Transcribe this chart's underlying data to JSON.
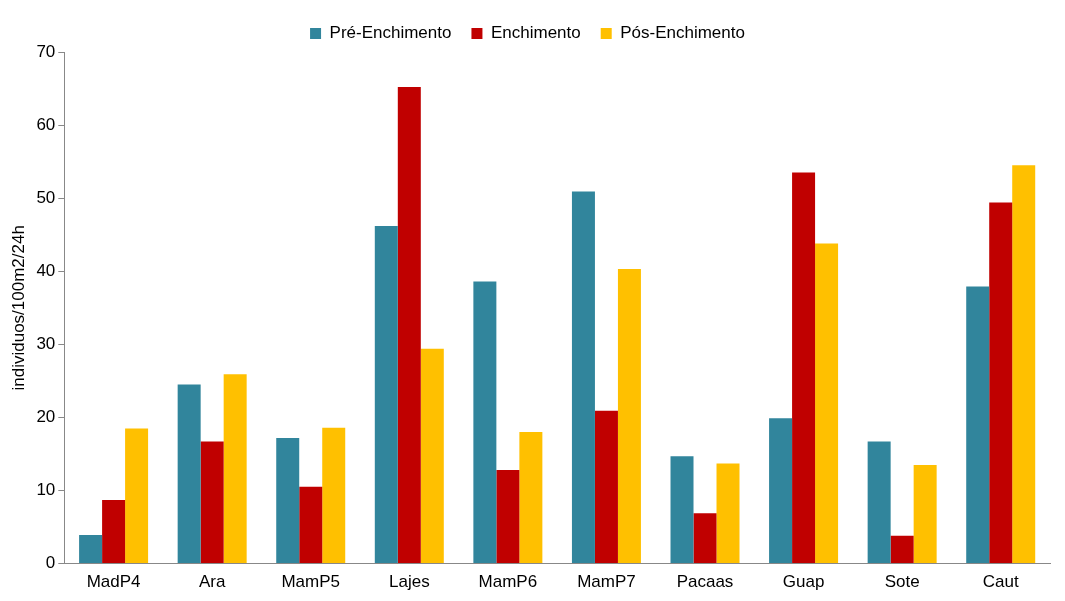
{
  "chart_data": {
    "type": "bar",
    "ylabel": "individuos/100m2/24h",
    "categories": [
      "MadP4",
      "Ara",
      "MamP5",
      "Lajes",
      "MamP6",
      "MamP7",
      "Pacaas",
      "Guap",
      "Sote",
      "Caut"
    ],
    "series": [
      {
        "name": "Pré-Enchimento",
        "color": "#31859c",
        "values": [
          3.9,
          24.5,
          17.2,
          46.2,
          38.6,
          50.9,
          14.7,
          19.9,
          16.7,
          37.9
        ]
      },
      {
        "name": "Enchimento",
        "color": "#c00000",
        "values": [
          8.7,
          16.7,
          10.5,
          65.2,
          12.8,
          20.9,
          6.9,
          53.5,
          3.8,
          49.4
        ]
      },
      {
        "name": "Pós-Enchimento",
        "color": "#ffc000",
        "values": [
          18.5,
          25.9,
          18.6,
          29.4,
          18.0,
          40.3,
          13.7,
          43.8,
          13.5,
          54.5
        ]
      }
    ],
    "ylim": [
      0,
      70
    ],
    "yticks": [
      0,
      10,
      20,
      30,
      40,
      50,
      60,
      70
    ],
    "grid": false,
    "legend": "top"
  }
}
